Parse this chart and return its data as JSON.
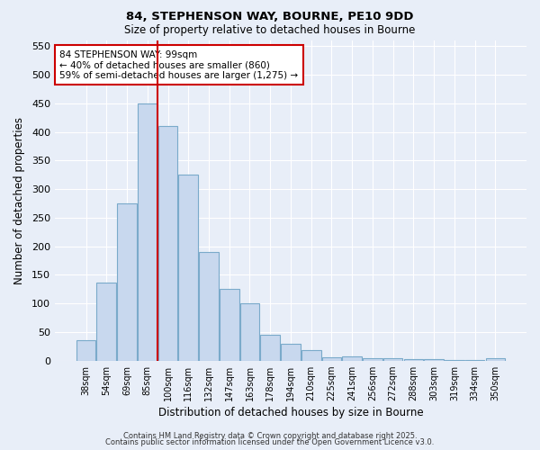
{
  "title1": "84, STEPHENSON WAY, BOURNE, PE10 9DD",
  "title2": "Size of property relative to detached houses in Bourne",
  "xlabel": "Distribution of detached houses by size in Bourne",
  "ylabel": "Number of detached properties",
  "categories": [
    "38sqm",
    "54sqm",
    "69sqm",
    "85sqm",
    "100sqm",
    "116sqm",
    "132sqm",
    "147sqm",
    "163sqm",
    "178sqm",
    "194sqm",
    "210sqm",
    "225sqm",
    "241sqm",
    "256sqm",
    "272sqm",
    "288sqm",
    "303sqm",
    "319sqm",
    "334sqm",
    "350sqm"
  ],
  "values": [
    35,
    136,
    275,
    450,
    410,
    325,
    190,
    125,
    100,
    45,
    30,
    18,
    6,
    8,
    4,
    4,
    2,
    2,
    1,
    1,
    5
  ],
  "bar_color": "#c8d8ee",
  "bar_edge_color": "#7aaaca",
  "vline_color": "#cc0000",
  "vline_index": 3.5,
  "annotation_text": "84 STEPHENSON WAY: 99sqm\n← 40% of detached houses are smaller (860)\n59% of semi-detached houses are larger (1,275) →",
  "annotation_box_facecolor": "#ffffff",
  "annotation_box_edgecolor": "#cc0000",
  "ylim": [
    0,
    560
  ],
  "yticks": [
    0,
    50,
    100,
    150,
    200,
    250,
    300,
    350,
    400,
    450,
    500,
    550
  ],
  "bg_color": "#e8eef8",
  "grid_color": "#ffffff",
  "footer1": "Contains HM Land Registry data © Crown copyright and database right 2025.",
  "footer2": "Contains public sector information licensed under the Open Government Licence v3.0."
}
